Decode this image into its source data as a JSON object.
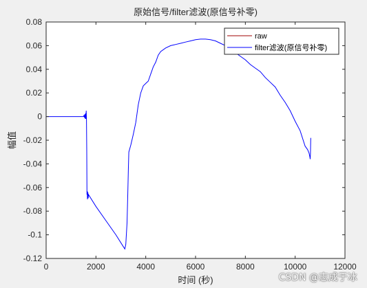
{
  "chart_data": {
    "type": "line",
    "title": "原始信号/filter滤波(原信号补零)",
    "xlabel": "时间 (秒)",
    "ylabel": "幅值",
    "xlim": [
      0,
      12000
    ],
    "ylim": [
      -0.12,
      0.08
    ],
    "xticks": [
      0,
      2000,
      4000,
      6000,
      8000,
      10000,
      12000
    ],
    "xtick_labels": [
      "0",
      "2000",
      "4000",
      "6000",
      "8000",
      "10000",
      "12000"
    ],
    "yticks": [
      -0.12,
      -0.1,
      -0.08,
      -0.06,
      -0.04,
      -0.02,
      0,
      0.02,
      0.04,
      0.06,
      0.08
    ],
    "ytick_labels": [
      "-0.12",
      "-0.1",
      "-0.08",
      "-0.06",
      "-0.04",
      "-0.02",
      "0",
      "0.02",
      "0.04",
      "0.06",
      "0.08"
    ],
    "grid": false,
    "legend_position": "top-right",
    "series": [
      {
        "name": "raw",
        "color": "#a00000",
        "points": []
      },
      {
        "name": "filter滤波(原信号补零)",
        "color": "#0000ff",
        "points": [
          [
            0,
            0
          ],
          [
            1400,
            0
          ],
          [
            1500,
            0
          ],
          [
            1520,
            0.001
          ],
          [
            1540,
            -0.001
          ],
          [
            1560,
            0.002
          ],
          [
            1575,
            -0.002
          ],
          [
            1590,
            0.003
          ],
          [
            1600,
            -0.002
          ],
          [
            1610,
            0.005
          ],
          [
            1620,
            -0.003
          ],
          [
            1630,
            -0.03
          ],
          [
            1640,
            -0.066
          ],
          [
            1650,
            -0.063
          ],
          [
            1660,
            -0.07
          ],
          [
            1675,
            -0.064
          ],
          [
            1690,
            -0.069
          ],
          [
            1700,
            -0.066
          ],
          [
            2000,
            -0.076
          ],
          [
            2400,
            -0.088
          ],
          [
            2800,
            -0.1
          ],
          [
            3100,
            -0.11
          ],
          [
            3160,
            -0.112
          ],
          [
            3200,
            -0.108
          ],
          [
            3250,
            -0.09
          ],
          [
            3280,
            -0.065
          ],
          [
            3300,
            -0.045
          ],
          [
            3320,
            -0.03
          ],
          [
            3400,
            -0.024
          ],
          [
            3500,
            -0.015
          ],
          [
            3600,
            -0.005
          ],
          [
            3700,
            0.01
          ],
          [
            3800,
            0.02
          ],
          [
            3900,
            0.026
          ],
          [
            4000,
            0.028
          ],
          [
            4100,
            0.03
          ],
          [
            4200,
            0.036
          ],
          [
            4300,
            0.042
          ],
          [
            4400,
            0.046
          ],
          [
            4500,
            0.052
          ],
          [
            4600,
            0.055
          ],
          [
            4800,
            0.058
          ],
          [
            5000,
            0.06
          ],
          [
            5200,
            0.061
          ],
          [
            5400,
            0.062
          ],
          [
            5600,
            0.063
          ],
          [
            5800,
            0.064
          ],
          [
            6000,
            0.065
          ],
          [
            6200,
            0.0655
          ],
          [
            6400,
            0.0655
          ],
          [
            6600,
            0.065
          ],
          [
            6800,
            0.064
          ],
          [
            7000,
            0.062
          ],
          [
            7200,
            0.06
          ],
          [
            7400,
            0.057
          ],
          [
            7600,
            0.054
          ],
          [
            7800,
            0.051
          ],
          [
            8000,
            0.048
          ],
          [
            8200,
            0.044
          ],
          [
            8400,
            0.041
          ],
          [
            8600,
            0.038
          ],
          [
            8800,
            0.033
          ],
          [
            9000,
            0.029
          ],
          [
            9200,
            0.025
          ],
          [
            9400,
            0.018
          ],
          [
            9600,
            0.012
          ],
          [
            9800,
            0.005
          ],
          [
            10000,
            -0.004
          ],
          [
            10200,
            -0.012
          ],
          [
            10400,
            -0.025
          ],
          [
            10500,
            -0.028
          ],
          [
            10560,
            -0.031
          ],
          [
            10590,
            -0.034
          ],
          [
            10605,
            -0.036
          ],
          [
            10615,
            -0.031
          ],
          [
            10625,
            -0.018
          ]
        ]
      }
    ]
  },
  "watermark": "CSDN @志成于冰"
}
